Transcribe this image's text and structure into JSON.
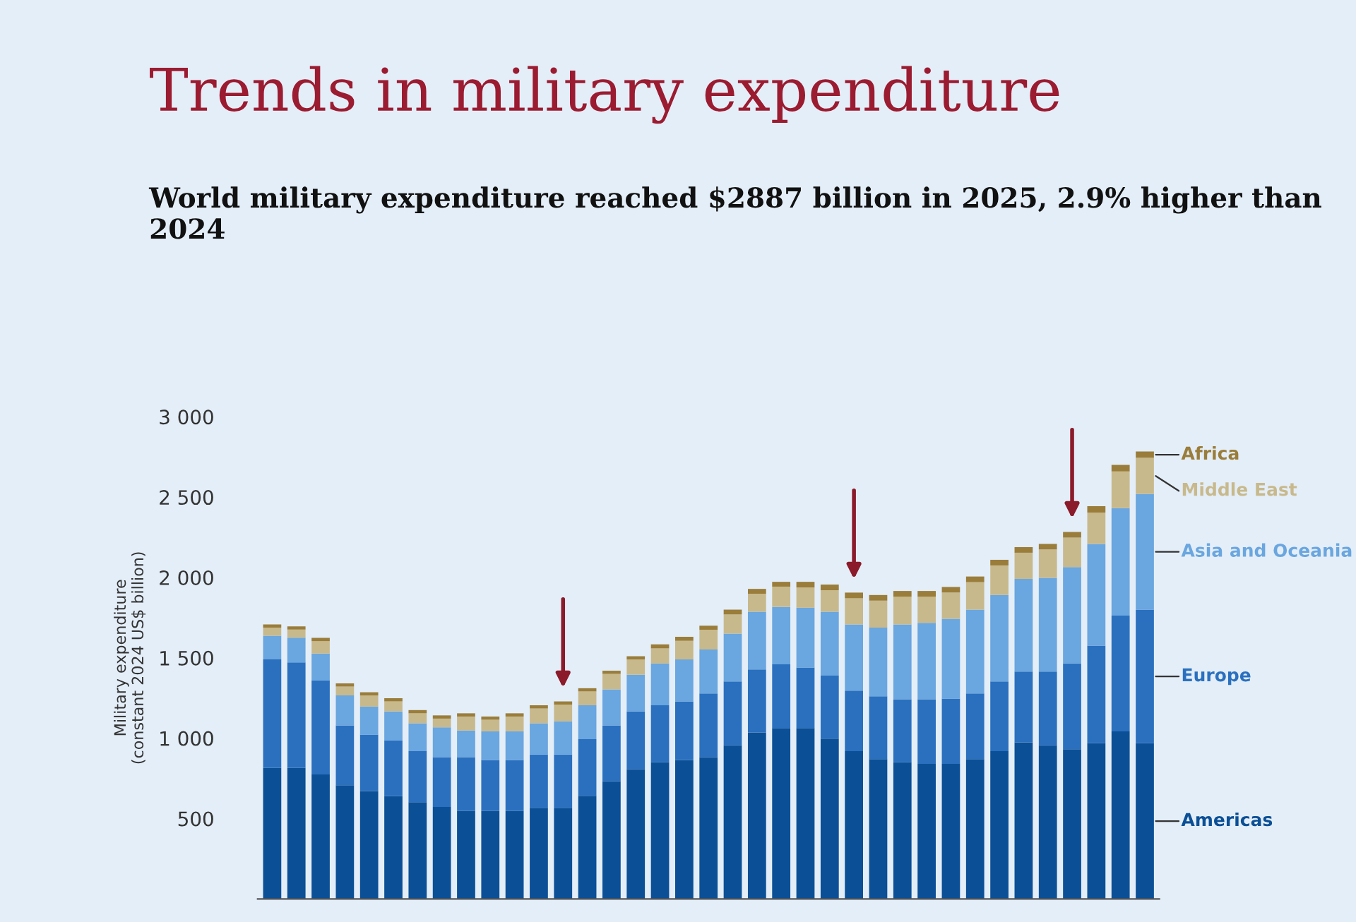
{
  "chart_data": {
    "type": "bar",
    "stacked": true,
    "title": "Trends in military expenditure",
    "subtitle": "World military expenditure reached $2887 billion in 2025, 2.9% higher than 2024",
    "ylabel": "Military expenditure\n(constant 2024 US$ billion)",
    "categories": [
      null,
      null,
      null,
      null,
      null,
      null,
      null,
      null,
      null,
      null,
      null,
      null,
      null,
      null,
      null,
      null,
      null,
      null,
      null,
      null,
      null,
      null,
      null,
      null,
      null,
      null,
      null,
      null,
      null,
      null,
      null,
      null,
      null,
      null,
      null,
      null,
      null
    ],
    "series": [
      {
        "name": "Americas",
        "color": "#0b4f96",
        "values": [
          815,
          815,
          775,
          708,
          671,
          639,
          602,
          572,
          547,
          547,
          547,
          567,
          567,
          642,
          733,
          808,
          850,
          865,
          882,
          956,
          1036,
          1063,
          1063,
          998,
          919,
          870,
          850,
          840,
          840,
          870,
          919,
          974,
          956,
          932,
          969,
          1043,
          969
        ]
      },
      {
        "name": "Europe",
        "color": "#2a70bf",
        "values": [
          675,
          657,
          586,
          372,
          352,
          349,
          317,
          310,
          335,
          318,
          318,
          332,
          332,
          352,
          347,
          359,
          355,
          364,
          397,
          397,
          392,
          397,
          377,
          392,
          377,
          391,
          392,
          402,
          407,
          409,
          434,
          441,
          459,
          533,
          607,
          720,
          831
        ]
      },
      {
        "name": "Asia and Oceania",
        "color": "#6aa6df",
        "values": [
          148,
          154,
          166,
          186,
          174,
          179,
          174,
          186,
          166,
          178,
          178,
          194,
          206,
          211,
          224,
          228,
          260,
          261,
          273,
          298,
          359,
          357,
          372,
          397,
          412,
          427,
          466,
          476,
          496,
          521,
          538,
          576,
          583,
          600,
          633,
          669,
          719
        ]
      },
      {
        "name": "Middle East",
        "color": "#c8b98c",
        "values": [
          50,
          50,
          77,
          55,
          69,
          62,
          62,
          54,
          87,
          72,
          92,
          92,
          104,
          86,
          96,
          95,
          94,
          116,
          123,
          119,
          112,
          126,
          126,
          134,
          163,
          168,
          173,
          163,
          163,
          171,
          184,
          163,
          176,
          183,
          195,
          228,
          225
        ]
      },
      {
        "name": "Africa",
        "color": "#9a7d3a",
        "values": [
          20,
          20,
          20,
          20,
          20,
          20,
          20,
          20,
          20,
          20,
          20,
          20,
          20,
          20,
          20,
          20,
          25,
          25,
          25,
          30,
          30,
          30,
          35,
          35,
          35,
          35,
          35,
          35,
          35,
          35,
          35,
          35,
          35,
          35,
          40,
          40,
          40
        ]
      }
    ],
    "ylim": [
      0,
      3000
    ],
    "yticks": [
      {
        "value": 500,
        "label": "500"
      },
      {
        "value": 1000,
        "label": "1 000"
      },
      {
        "value": 1500,
        "label": "1 500"
      },
      {
        "value": 2000,
        "label": "2 000"
      },
      {
        "value": 2500,
        "label": "2 500"
      },
      {
        "value": 3000,
        "label": "3 000"
      }
    ],
    "tick_labels": "y"
  }
}
